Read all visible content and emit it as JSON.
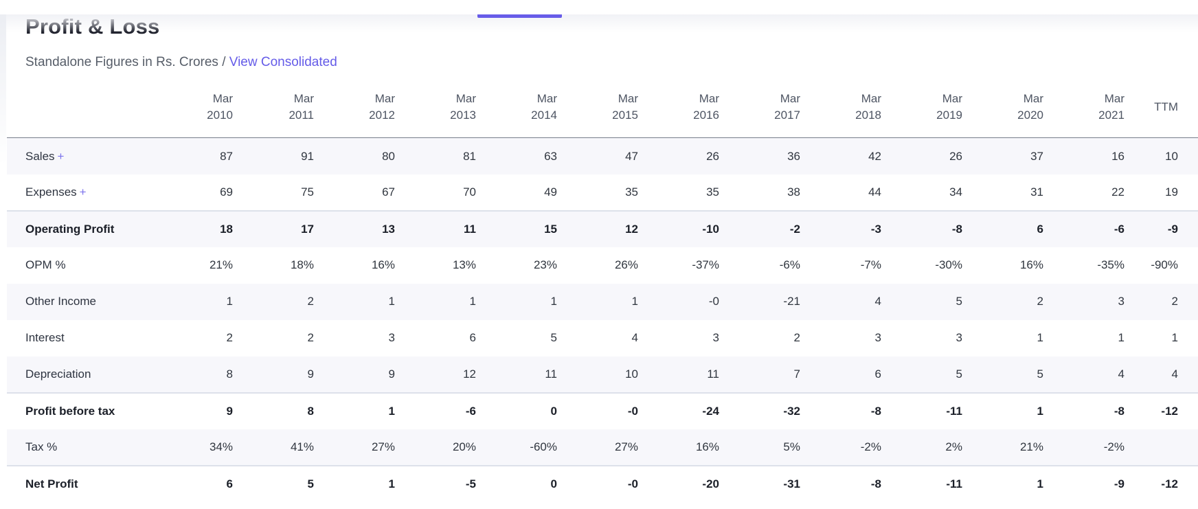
{
  "accent_color": "#675ce8",
  "header": {
    "title": "Profit & Loss",
    "subtitle_prefix": "Standalone Figures in Rs. Crores /",
    "view_link": "View Consolidated"
  },
  "table": {
    "columns": [
      "Mar\n2010",
      "Mar\n2011",
      "Mar\n2012",
      "Mar\n2013",
      "Mar\n2014",
      "Mar\n2015",
      "Mar\n2016",
      "Mar\n2017",
      "Mar\n2018",
      "Mar\n2019",
      "Mar\n2020",
      "Mar\n2021",
      "TTM"
    ],
    "rows": [
      {
        "label": "Sales",
        "expandable": true,
        "bold": false,
        "section": false,
        "values": [
          "87",
          "91",
          "80",
          "81",
          "63",
          "47",
          "26",
          "36",
          "42",
          "26",
          "37",
          "16",
          "10"
        ]
      },
      {
        "label": "Expenses",
        "expandable": true,
        "bold": false,
        "section": false,
        "values": [
          "69",
          "75",
          "67",
          "70",
          "49",
          "35",
          "35",
          "38",
          "44",
          "34",
          "31",
          "22",
          "19"
        ]
      },
      {
        "label": "Operating Profit",
        "expandable": false,
        "bold": true,
        "section": true,
        "values": [
          "18",
          "17",
          "13",
          "11",
          "15",
          "12",
          "-10",
          "-2",
          "-3",
          "-8",
          "6",
          "-6",
          "-9"
        ]
      },
      {
        "label": "OPM %",
        "expandable": false,
        "bold": false,
        "section": false,
        "values": [
          "21%",
          "18%",
          "16%",
          "13%",
          "23%",
          "26%",
          "-37%",
          "-6%",
          "-7%",
          "-30%",
          "16%",
          "-35%",
          "-90%"
        ]
      },
      {
        "label": "Other Income",
        "expandable": false,
        "bold": false,
        "section": false,
        "values": [
          "1",
          "2",
          "1",
          "1",
          "1",
          "1",
          "-0",
          "-21",
          "4",
          "5",
          "2",
          "3",
          "2"
        ]
      },
      {
        "label": "Interest",
        "expandable": false,
        "bold": false,
        "section": false,
        "values": [
          "2",
          "2",
          "3",
          "6",
          "5",
          "4",
          "3",
          "2",
          "3",
          "3",
          "1",
          "1",
          "1"
        ]
      },
      {
        "label": "Depreciation",
        "expandable": false,
        "bold": false,
        "section": false,
        "values": [
          "8",
          "9",
          "9",
          "12",
          "11",
          "10",
          "11",
          "7",
          "6",
          "5",
          "5",
          "4",
          "4"
        ]
      },
      {
        "label": "Profit before tax",
        "expandable": false,
        "bold": true,
        "section": true,
        "values": [
          "9",
          "8",
          "1",
          "-6",
          "0",
          "-0",
          "-24",
          "-32",
          "-8",
          "-11",
          "1",
          "-8",
          "-12"
        ]
      },
      {
        "label": "Tax %",
        "expandable": false,
        "bold": false,
        "section": false,
        "values": [
          "34%",
          "41%",
          "27%",
          "20%",
          "-60%",
          "27%",
          "16%",
          "5%",
          "-2%",
          "2%",
          "21%",
          "-2%",
          ""
        ]
      },
      {
        "label": "Net Profit",
        "expandable": false,
        "bold": true,
        "section": true,
        "values": [
          "6",
          "5",
          "1",
          "-5",
          "0",
          "-0",
          "-20",
          "-31",
          "-8",
          "-11",
          "1",
          "-9",
          "-12"
        ]
      }
    ]
  }
}
